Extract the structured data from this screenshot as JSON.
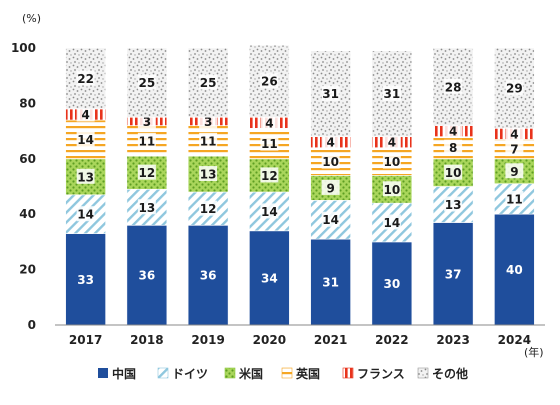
{
  "chart_data": {
    "type": "bar",
    "stacked": true,
    "y_unit": "(%)",
    "x_unit": "(年)",
    "ylim": [
      0,
      100
    ],
    "yticks": [
      "0",
      "20",
      "40",
      "60",
      "80",
      "100"
    ],
    "categories": [
      "2017",
      "2018",
      "2019",
      "2020",
      "2021",
      "2022",
      "2023",
      "2024"
    ],
    "series": [
      {
        "name": "中国",
        "values": [
          33,
          36,
          36,
          34,
          31,
          30,
          37,
          40
        ],
        "color": "#1f4e9c",
        "pattern": "solid"
      },
      {
        "name": "ドイツ",
        "values": [
          14,
          13,
          12,
          14,
          14,
          14,
          13,
          11
        ],
        "color": "#8fc7de",
        "pattern": "diagonal"
      },
      {
        "name": "米国",
        "values": [
          13,
          12,
          13,
          12,
          9,
          10,
          10,
          9
        ],
        "color": "#8dc63f",
        "pattern": "dots"
      },
      {
        "name": "英国",
        "values": [
          14,
          11,
          11,
          11,
          10,
          10,
          8,
          7
        ],
        "color": "#f5a623",
        "pattern": "horizontal"
      },
      {
        "name": "フランス",
        "values": [
          4,
          3,
          3,
          4,
          4,
          4,
          4,
          4
        ],
        "color": "#e8331c",
        "pattern": "vertical"
      },
      {
        "name": "その他",
        "values": [
          22,
          25,
          25,
          26,
          31,
          31,
          28,
          29
        ],
        "color": "#9a9a9a",
        "pattern": "speckle"
      }
    ],
    "grid": false,
    "legend": "bottom"
  }
}
